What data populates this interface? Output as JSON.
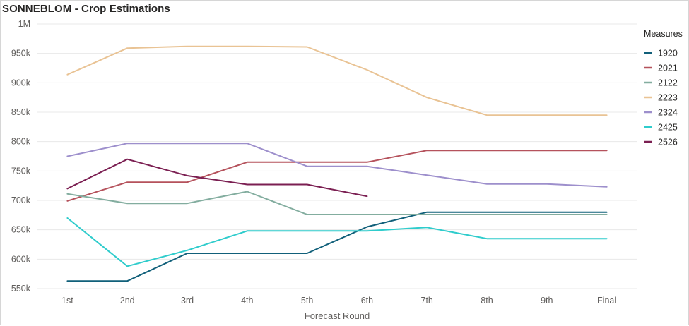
{
  "title": "SONNEBLOM - Crop Estimations",
  "chart_data": {
    "type": "line",
    "title": "SONNEBLOM - Crop Estimations",
    "xlabel": "Forecast Round",
    "ylabel": "",
    "categories": [
      "1st",
      "2nd",
      "3rd",
      "4th",
      "5th",
      "6th",
      "7th",
      "8th",
      "9th",
      "Final"
    ],
    "ylim": [
      550000,
      1000000
    ],
    "yticks": [
      550000,
      600000,
      650000,
      700000,
      750000,
      800000,
      850000,
      900000,
      950000,
      1000000
    ],
    "ytick_labels": [
      "550k",
      "600k",
      "650k",
      "700k",
      "750k",
      "800k",
      "850k",
      "900k",
      "950k",
      "1M"
    ],
    "grid": true,
    "legend_title": "Measures",
    "legend_position": "right",
    "series": [
      {
        "name": "1920",
        "color": "#11607a",
        "values": [
          563000,
          563000,
          610000,
          610000,
          610000,
          655000,
          680000,
          680000,
          680000,
          680000
        ]
      },
      {
        "name": "2021",
        "color": "#b5525c",
        "values": [
          699000,
          731000,
          731000,
          765000,
          765000,
          765000,
          785000,
          785000,
          785000,
          785000
        ]
      },
      {
        "name": "2122",
        "color": "#83ad9f",
        "values": [
          711000,
          695000,
          695000,
          715000,
          676000,
          676000,
          676000,
          676000,
          676000,
          676000
        ]
      },
      {
        "name": "2223",
        "color": "#e9c394",
        "values": [
          914000,
          959000,
          962000,
          962000,
          961000,
          922000,
          875000,
          845000,
          845000,
          845000
        ]
      },
      {
        "name": "2324",
        "color": "#9d8fcc",
        "values": [
          775000,
          797000,
          797000,
          797000,
          758000,
          758000,
          743000,
          728000,
          728000,
          723000
        ]
      },
      {
        "name": "2425",
        "color": "#2fcccc",
        "values": [
          670000,
          588000,
          615000,
          648000,
          648000,
          648000,
          654000,
          635000,
          635000,
          635000
        ]
      },
      {
        "name": "2526",
        "color": "#7b1f52",
        "values": [
          720000,
          770000,
          742000,
          727000,
          727000,
          707000,
          null,
          null,
          null,
          null
        ]
      }
    ]
  }
}
